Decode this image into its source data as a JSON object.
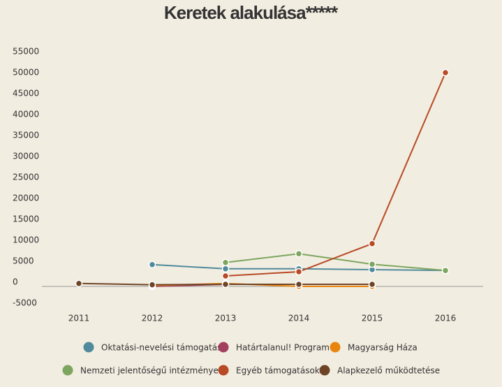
{
  "chart_data": {
    "type": "line",
    "title": "Keretek alakulása*****",
    "categories": [
      "2011",
      "2012",
      "2013",
      "2014",
      "2015",
      "2016"
    ],
    "series": [
      {
        "name": "Oktatási-nevelési támogatás",
        "color": "#508a9c",
        "values": [
          null,
          5200,
          4200,
          4200,
          4000,
          3800
        ]
      },
      {
        "name": "Határtalanul! Program",
        "color": "#a2405e",
        "values": [
          null,
          0,
          500,
          null,
          null,
          null
        ]
      },
      {
        "name": "Magyarság Háza",
        "color": "#e8850f",
        "values": [
          null,
          200,
          700,
          0,
          0,
          null
        ]
      },
      {
        "name": "Nemzeti jelentőségű intézmények",
        "color": "#7ca65e",
        "values": [
          null,
          null,
          5700,
          7800,
          5300,
          3800
        ]
      },
      {
        "name": "Egyéb támogatások",
        "color": "#b84a25",
        "values": [
          null,
          null,
          2500,
          3500,
          10200,
          51000
        ]
      },
      {
        "name": "Alapkezelő működtetése",
        "color": "#6e4427",
        "values": [
          700,
          400,
          500,
          500,
          500,
          null
        ]
      }
    ],
    "ylim": [
      -5000,
      55000
    ],
    "yticks": [
      -5000,
      0,
      5000,
      10000,
      15000,
      20000,
      25000,
      30000,
      35000,
      40000,
      45000,
      50000,
      55000
    ]
  }
}
